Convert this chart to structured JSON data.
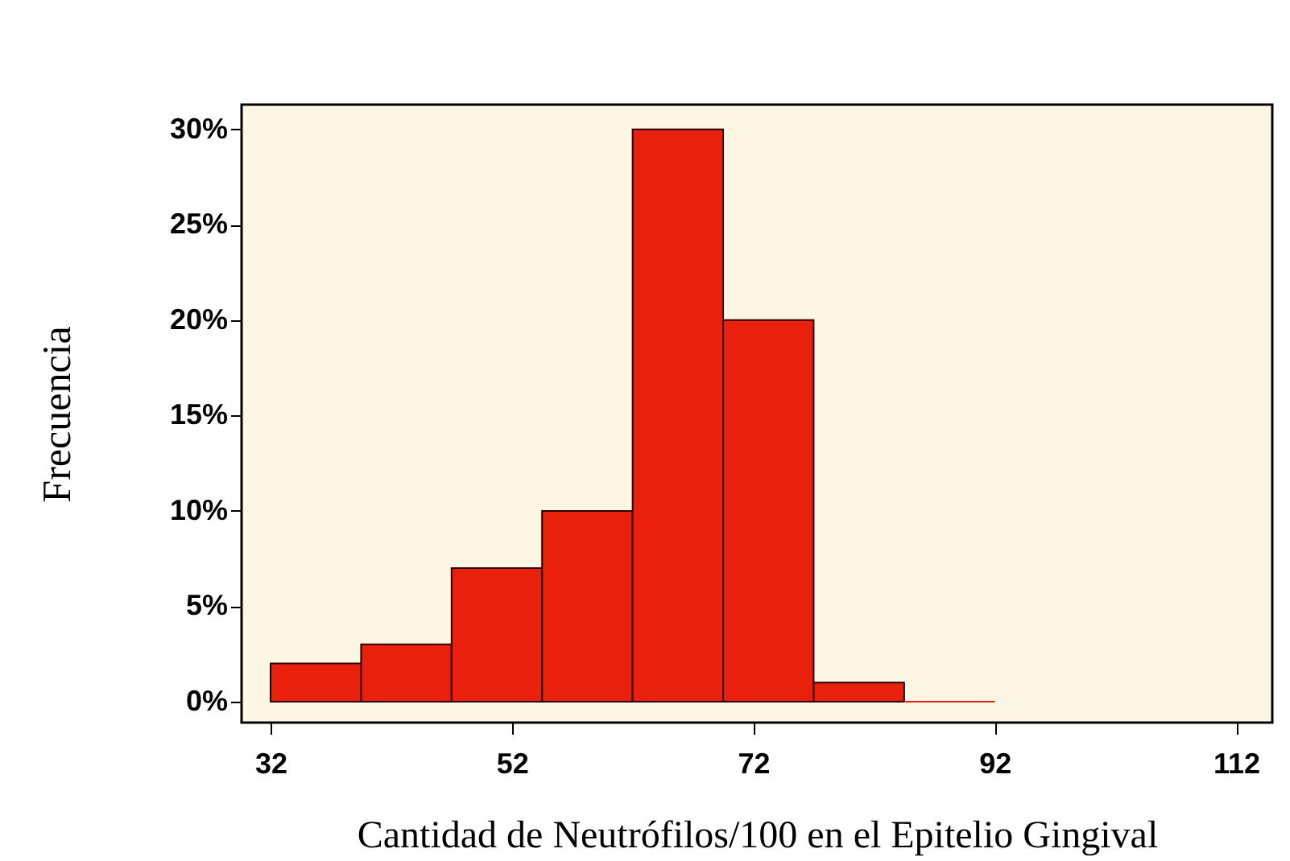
{
  "chart_data": {
    "type": "histogram",
    "xlabel": "Cantidad de Neutrófilos/100 en el Epitelio Gingival",
    "ylabel": "Frecuencia",
    "bins": [
      32,
      39.5,
      47,
      54.5,
      62,
      69.5,
      77,
      84.5,
      92
    ],
    "values": [
      2,
      3,
      7,
      10,
      30,
      20,
      1,
      0
    ],
    "color": "#e8200c",
    "xlim": [
      29.6,
      115
    ],
    "xticks": [
      32,
      52,
      72,
      92,
      112
    ],
    "ylim": [
      -1.1,
      31.3
    ],
    "yticks": [
      {
        "value": 0,
        "label": "0%"
      },
      {
        "value": 5,
        "label": "5%"
      },
      {
        "value": 10,
        "label": "10%"
      },
      {
        "value": 15,
        "label": "15%"
      },
      {
        "value": 20,
        "label": "20%"
      },
      {
        "value": 25,
        "label": "25%"
      },
      {
        "value": 30,
        "label": "30%"
      }
    ],
    "grid": false
  }
}
